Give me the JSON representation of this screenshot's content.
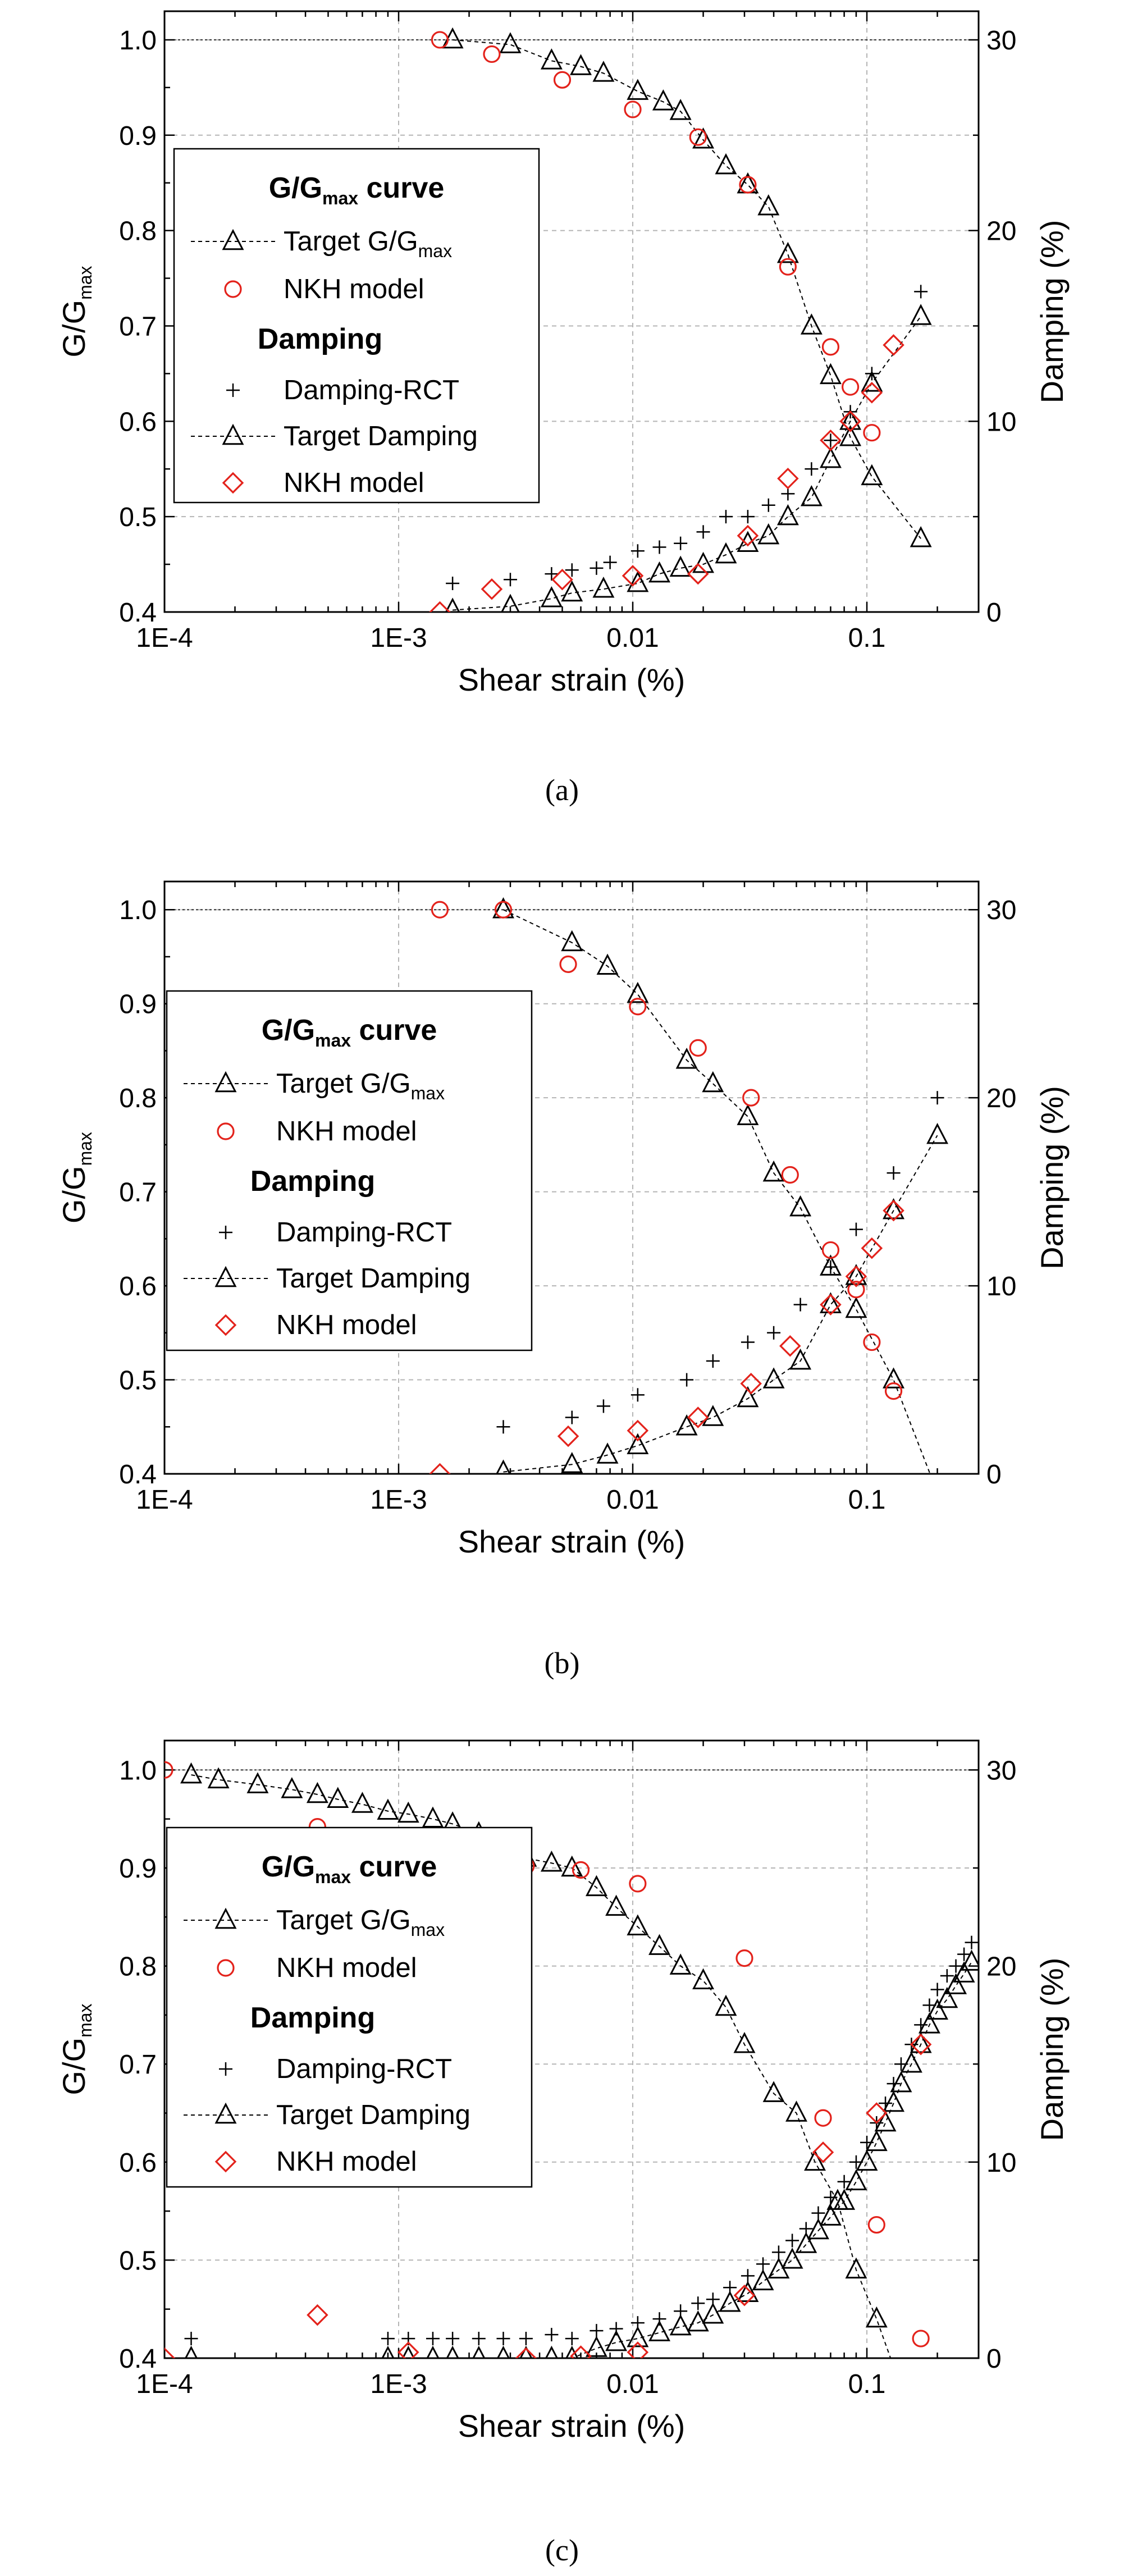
{
  "chart_data": [
    {
      "type": "scatter",
      "panel_label": "(a)",
      "xlabel": "Shear strain (%)",
      "ylabel_main": "G/G",
      "ylabel_sub": "max",
      "y2label": "Damping (%)",
      "x_scale": "log",
      "xlim": [
        0.0001,
        0.3
      ],
      "ylim": [
        0.4,
        1.03
      ],
      "y2lim": [
        0,
        31.5
      ],
      "x_ticks": [
        0.0001,
        0.001,
        0.01,
        0.1
      ],
      "x_tick_labels": [
        "1E-4",
        "1E-3",
        "0.01",
        "0.1"
      ],
      "y_ticks": [
        0.4,
        0.5,
        0.6,
        0.7,
        0.8,
        0.9,
        1.0
      ],
      "y_tick_labels": [
        "0.4",
        "0.5",
        "0.6",
        "0.7",
        "0.8",
        "0.9",
        "1.0"
      ],
      "y2_ticks": [
        0,
        10,
        20,
        30
      ],
      "y2_tick_labels": [
        "0",
        "10",
        "20",
        "30"
      ],
      "grid": true,
      "legend": {
        "placement": "left",
        "group1_main": "G/G",
        "group1_sub": "max",
        "group1_tail": " curve",
        "target_gg_main": "Target G/G",
        "target_gg_sub": "max",
        "nkh_gg": "NKH model",
        "group2": "Damping",
        "rct": "Damping-RCT",
        "target_damping": "Target Damping",
        "nkh_damping": "NKH model"
      },
      "series": [
        {
          "key": "target_gg",
          "axis": "left",
          "x": [
            0.0017,
            0.003,
            0.0045,
            0.006,
            0.0075,
            0.0105,
            0.0135,
            0.016,
            0.02,
            0.025,
            0.031,
            0.038,
            0.046,
            0.058,
            0.07,
            0.085,
            0.105,
            0.17
          ],
          "y": [
            1.0,
            0.995,
            0.978,
            0.972,
            0.965,
            0.946,
            0.935,
            0.925,
            0.895,
            0.868,
            0.848,
            0.825,
            0.775,
            0.7,
            0.648,
            0.583,
            0.542,
            0.477
          ]
        },
        {
          "key": "nkh_gg",
          "axis": "left",
          "x": [
            0.0015,
            0.0025,
            0.005,
            0.01,
            0.019,
            0.031,
            0.046,
            0.07,
            0.085,
            0.105
          ],
          "y": [
            1.0,
            0.985,
            0.958,
            0.927,
            0.898,
            0.848,
            0.762,
            0.678,
            0.636,
            0.588
          ]
        },
        {
          "key": "rct",
          "axis": "right",
          "x": [
            0.0017,
            0.003,
            0.0045,
            0.0055,
            0.007,
            0.008,
            0.0105,
            0.013,
            0.016,
            0.02,
            0.025,
            0.031,
            0.038,
            0.046,
            0.058,
            0.07,
            0.085,
            0.105,
            0.17
          ],
          "y": [
            1.5,
            1.7,
            2.0,
            2.2,
            2.3,
            2.6,
            3.2,
            3.4,
            3.6,
            4.2,
            5.0,
            5.0,
            5.6,
            6.2,
            7.5,
            9.0,
            10.5,
            12.5,
            16.8
          ]
        },
        {
          "key": "target_damping",
          "axis": "right",
          "x": [
            0.0017,
            0.003,
            0.0045,
            0.0055,
            0.0075,
            0.0105,
            0.013,
            0.016,
            0.02,
            0.025,
            0.031,
            0.038,
            0.046,
            0.058,
            0.07,
            0.085,
            0.105,
            0.17
          ],
          "y": [
            0.1,
            0.3,
            0.7,
            1.0,
            1.2,
            1.5,
            2.0,
            2.3,
            2.5,
            3.0,
            3.6,
            4.0,
            5.0,
            6.0,
            8.0,
            10.0,
            12.0,
            15.5
          ]
        },
        {
          "key": "nkh_damping",
          "axis": "right",
          "x": [
            0.0015,
            0.0025,
            0.005,
            0.01,
            0.019,
            0.031,
            0.046,
            0.07,
            0.085,
            0.105,
            0.13
          ],
          "y": [
            0.0,
            1.2,
            1.7,
            1.9,
            2.0,
            4.0,
            7.0,
            9.0,
            10.0,
            11.5,
            14.0
          ]
        }
      ]
    },
    {
      "type": "scatter",
      "panel_label": "(b)",
      "xlabel": "Shear strain (%)",
      "ylabel_main": "G/G",
      "ylabel_sub": "max",
      "y2label": "Damping (%)",
      "x_scale": "log",
      "xlim": [
        0.0001,
        0.3
      ],
      "ylim": [
        0.4,
        1.03
      ],
      "y2lim": [
        0,
        31.5
      ],
      "x_ticks": [
        0.0001,
        0.001,
        0.01,
        0.1
      ],
      "x_tick_labels": [
        "1E-4",
        "1E-3",
        "0.01",
        "0.1"
      ],
      "y_ticks": [
        0.4,
        0.5,
        0.6,
        0.7,
        0.8,
        0.9,
        1.0
      ],
      "y_tick_labels": [
        "0.4",
        "0.5",
        "0.6",
        "0.7",
        "0.8",
        "0.9",
        "1.0"
      ],
      "y2_ticks": [
        0,
        10,
        20,
        30
      ],
      "y2_tick_labels": [
        "0",
        "10",
        "20",
        "30"
      ],
      "grid": true,
      "legend": {
        "placement": "left",
        "group1_main": "G/G",
        "group1_sub": "max",
        "group1_tail": " curve",
        "target_gg_main": "Target G/G",
        "target_gg_sub": "max",
        "nkh_gg": "NKH model",
        "group2": "Damping",
        "rct": "Damping-RCT",
        "target_damping": "Target Damping",
        "nkh_damping": "NKH model"
      },
      "series": [
        {
          "key": "target_gg",
          "axis": "left",
          "x": [
            0.0028,
            0.0055,
            0.0078,
            0.0105,
            0.017,
            0.022,
            0.031,
            0.04,
            0.052,
            0.07,
            0.09,
            0.13,
            0.2
          ],
          "y": [
            1.0,
            0.965,
            0.94,
            0.91,
            0.84,
            0.815,
            0.78,
            0.72,
            0.683,
            0.62,
            0.575,
            0.5,
            0.38
          ]
        },
        {
          "key": "nkh_gg",
          "axis": "left",
          "x": [
            0.0015,
            0.0028,
            0.0053,
            0.0105,
            0.019,
            0.032,
            0.047,
            0.07,
            0.09,
            0.105,
            0.13
          ],
          "y": [
            1.0,
            1.0,
            0.942,
            0.897,
            0.853,
            0.8,
            0.718,
            0.638,
            0.596,
            0.54,
            0.488
          ]
        },
        {
          "key": "rct",
          "axis": "right",
          "x": [
            0.0028,
            0.0055,
            0.0075,
            0.0105,
            0.017,
            0.022,
            0.031,
            0.04,
            0.052,
            0.07,
            0.09,
            0.13,
            0.2
          ],
          "y": [
            2.5,
            3.0,
            3.6,
            4.2,
            5.0,
            6.0,
            7.0,
            7.5,
            9.0,
            11.0,
            13.0,
            16.0,
            20.0
          ]
        },
        {
          "key": "target_damping",
          "axis": "right",
          "x": [
            0.0028,
            0.0055,
            0.0078,
            0.0105,
            0.017,
            0.022,
            0.031,
            0.04,
            0.052,
            0.07,
            0.09,
            0.13,
            0.2
          ],
          "y": [
            0.1,
            0.5,
            1.0,
            1.5,
            2.5,
            3.0,
            4.0,
            5.0,
            6.0,
            9.0,
            10.5,
            14.0,
            18.0
          ]
        },
        {
          "key": "nkh_damping",
          "axis": "right",
          "x": [
            0.0015,
            0.0053,
            0.0105,
            0.019,
            0.032,
            0.047,
            0.07,
            0.09,
            0.105,
            0.13
          ],
          "y": [
            0.0,
            2.0,
            2.3,
            3.0,
            4.8,
            6.8,
            9.0,
            10.5,
            12.0,
            14.0
          ]
        }
      ]
    },
    {
      "type": "scatter",
      "panel_label": "(c)",
      "xlabel": "Shear strain (%)",
      "ylabel_main": "G/G",
      "ylabel_sub": "max",
      "y2label": "Damping (%)",
      "x_scale": "log",
      "xlim": [
        0.0001,
        0.3
      ],
      "ylim": [
        0.4,
        1.03
      ],
      "y2lim": [
        0,
        31.5
      ],
      "x_ticks": [
        0.0001,
        0.001,
        0.01,
        0.1
      ],
      "x_tick_labels": [
        "1E-4",
        "1E-3",
        "0.01",
        "0.1"
      ],
      "y_ticks": [
        0.4,
        0.5,
        0.6,
        0.7,
        0.8,
        0.9,
        1.0
      ],
      "y_tick_labels": [
        "0.4",
        "0.5",
        "0.6",
        "0.7",
        "0.8",
        "0.9",
        "1.0"
      ],
      "y2_ticks": [
        0,
        10,
        20,
        30
      ],
      "y2_tick_labels": [
        "0",
        "10",
        "20",
        "30"
      ],
      "grid": true,
      "legend": {
        "placement": "left",
        "group1_main": "G/G",
        "group1_sub": "max",
        "group1_tail": " curve",
        "target_gg_main": "Target G/G",
        "target_gg_sub": "max",
        "nkh_gg": "NKH model",
        "group2": "Damping",
        "rct": "Damping-RCT",
        "target_damping": "Target Damping",
        "nkh_damping": "NKH model"
      },
      "series": [
        {
          "key": "target_gg",
          "axis": "left",
          "x": [
            0.00013,
            0.00017,
            0.00025,
            0.00035,
            0.00045,
            0.00055,
            0.0007,
            0.0009,
            0.0011,
            0.0014,
            0.0017,
            0.0022,
            0.0028,
            0.0035,
            0.0045,
            0.0055,
            0.007,
            0.0085,
            0.0105,
            0.013,
            0.016,
            0.02,
            0.025,
            0.03,
            0.04,
            0.05,
            0.06,
            0.075,
            0.09,
            0.11,
            0.14
          ],
          "y": [
            0.995,
            0.99,
            0.985,
            0.98,
            0.975,
            0.97,
            0.965,
            0.958,
            0.955,
            0.95,
            0.945,
            0.935,
            0.925,
            0.91,
            0.905,
            0.9,
            0.88,
            0.86,
            0.84,
            0.82,
            0.8,
            0.785,
            0.758,
            0.72,
            0.67,
            0.65,
            0.6,
            0.56,
            0.49,
            0.44,
            0.37
          ]
        },
        {
          "key": "nkh_gg",
          "axis": "left",
          "x": [
            0.0001,
            0.00045,
            0.0011,
            0.0035,
            0.006,
            0.0105,
            0.03,
            0.065,
            0.11,
            0.17
          ],
          "y": [
            1.0,
            0.942,
            0.912,
            0.902,
            0.898,
            0.884,
            0.808,
            0.645,
            0.536,
            0.42
          ]
        },
        {
          "key": "rct",
          "axis": "right",
          "x": [
            0.00013,
            0.0009,
            0.0011,
            0.0014,
            0.0017,
            0.0022,
            0.0028,
            0.0035,
            0.0045,
            0.0055,
            0.007,
            0.0085,
            0.0105,
            0.013,
            0.016,
            0.019,
            0.022,
            0.026,
            0.031,
            0.036,
            0.042,
            0.048,
            0.055,
            0.062,
            0.07,
            0.08,
            0.09,
            0.1,
            0.11,
            0.12,
            0.13,
            0.14,
            0.155,
            0.17,
            0.185,
            0.2,
            0.22,
            0.24,
            0.26,
            0.28
          ],
          "y": [
            1.0,
            1.0,
            1.0,
            1.0,
            1.0,
            1.0,
            1.0,
            1.0,
            1.2,
            1.0,
            1.4,
            1.5,
            1.8,
            2.0,
            2.4,
            2.8,
            3.0,
            3.6,
            4.2,
            4.8,
            5.4,
            6.0,
            6.6,
            7.4,
            8.2,
            9.0,
            10.0,
            11.0,
            12.0,
            13.0,
            14.0,
            15.0,
            16.0,
            17.0,
            18.0,
            18.8,
            19.5,
            20.0,
            20.6,
            21.2
          ]
        },
        {
          "key": "target_damping",
          "axis": "right",
          "x": [
            0.00013,
            0.0009,
            0.0011,
            0.0014,
            0.0017,
            0.0022,
            0.0028,
            0.0035,
            0.0045,
            0.0055,
            0.007,
            0.0085,
            0.0105,
            0.013,
            0.016,
            0.019,
            0.022,
            0.026,
            0.031,
            0.036,
            0.042,
            0.048,
            0.055,
            0.062,
            0.07,
            0.08,
            0.09,
            0.1,
            0.11,
            0.12,
            0.13,
            0.14,
            0.155,
            0.17,
            0.185,
            0.2,
            0.22,
            0.24,
            0.26,
            0.28
          ],
          "y": [
            0.0,
            0.0,
            0.0,
            0.0,
            0.0,
            0.0,
            0.0,
            0.0,
            0.0,
            0.0,
            0.5,
            0.8,
            1.0,
            1.3,
            1.6,
            1.8,
            2.2,
            2.8,
            3.3,
            3.9,
            4.5,
            5.0,
            5.8,
            6.5,
            7.2,
            8.0,
            9.0,
            10.0,
            11.0,
            12.0,
            13.0,
            14.0,
            15.0,
            16.0,
            17.0,
            17.7,
            18.3,
            19.0,
            19.6,
            20.2
          ]
        },
        {
          "key": "nkh_damping",
          "axis": "right",
          "x": [
            0.0001,
            0.00045,
            0.0011,
            0.0035,
            0.006,
            0.0105,
            0.03,
            0.065,
            0.11,
            0.17
          ],
          "y": [
            0.0,
            2.2,
            0.3,
            0.0,
            0.1,
            0.3,
            3.2,
            10.5,
            12.5,
            16.0
          ]
        }
      ]
    }
  ]
}
